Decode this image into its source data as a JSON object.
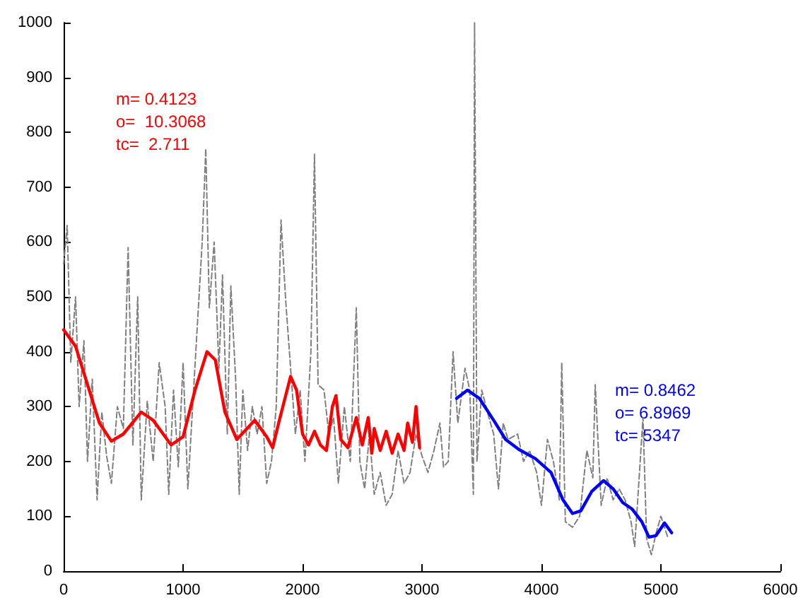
{
  "chart_data": {
    "type": "line",
    "xlim": [
      0,
      6000
    ],
    "ylim": [
      0,
      1000
    ],
    "xticks": [
      0,
      1000,
      2000,
      3000,
      4000,
      5000,
      6000
    ],
    "yticks": [
      0,
      100,
      200,
      300,
      400,
      500,
      600,
      700,
      800,
      900,
      1000
    ],
    "marker": "none",
    "annotations": [
      "m= 0.4123\no=  10.3068\ntc=  2.711",
      "m= 0.8462\no= 6.8969\ntc= 5347"
    ],
    "series": [
      {
        "color": "#808080",
        "line_style": "dashed",
        "x": [
          0,
          30,
          60,
          100,
          130,
          170,
          200,
          240,
          280,
          320,
          360,
          400,
          450,
          500,
          540,
          580,
          620,
          650,
          700,
          750,
          800,
          850,
          880,
          920,
          960,
          1000,
          1040,
          1080,
          1120,
          1160,
          1190,
          1220,
          1260,
          1300,
          1330,
          1370,
          1400,
          1440,
          1470,
          1500,
          1540,
          1580,
          1620,
          1660,
          1700,
          1740,
          1780,
          1820,
          1860,
          1900,
          1940,
          1980,
          2020,
          2070,
          2100,
          2130,
          2180,
          2220,
          2260,
          2300,
          2350,
          2400,
          2450,
          2480,
          2520,
          2560,
          2600,
          2650,
          2700,
          2750,
          2800,
          2850,
          2900,
          2950,
          3000,
          3050,
          3100,
          3150,
          3180,
          3220,
          3260,
          3300,
          3330,
          3360,
          3400,
          3430,
          3440,
          3460,
          3500,
          3560,
          3600,
          3640,
          3680,
          3720,
          3800,
          3850,
          3900,
          3960,
          4000,
          4050,
          4100,
          4150,
          4170,
          4200,
          4260,
          4320,
          4380,
          4430,
          4450,
          4500,
          4550,
          4600,
          4650,
          4700,
          4750,
          4780,
          4800,
          4850,
          4880,
          4920,
          4960,
          5000,
          5060
        ],
        "values": [
          560,
          630,
          380,
          500,
          300,
          420,
          200,
          350,
          130,
          290,
          210,
          160,
          300,
          260,
          590,
          230,
          500,
          130,
          310,
          200,
          380,
          300,
          140,
          330,
          190,
          380,
          150,
          300,
          450,
          600,
          770,
          480,
          600,
          370,
          540,
          250,
          520,
          350,
          140,
          330,
          220,
          300,
          250,
          300,
          160,
          200,
          300,
          640,
          490,
          370,
          250,
          330,
          200,
          400,
          760,
          340,
          330,
          250,
          280,
          160,
          300,
          200,
          480,
          200,
          150,
          250,
          140,
          180,
          120,
          140,
          220,
          160,
          180,
          250,
          210,
          180,
          220,
          270,
          190,
          200,
          400,
          270,
          320,
          370,
          330,
          140,
          1000,
          200,
          330,
          280,
          250,
          150,
          270,
          240,
          250,
          200,
          220,
          180,
          120,
          240,
          200,
          130,
          380,
          90,
          80,
          100,
          220,
          170,
          340,
          120,
          170,
          130,
          150,
          130,
          90,
          45,
          110,
          280,
          60,
          30,
          70,
          100,
          60
        ]
      },
      {
        "color": "#ff0000",
        "line_style": "solid",
        "x": [
          0,
          100,
          200,
          300,
          400,
          500,
          650,
          750,
          900,
          1000,
          1100,
          1200,
          1270,
          1350,
          1450,
          1600,
          1700,
          1750,
          1800,
          1900,
          1950,
          2000,
          2050,
          2100,
          2150,
          2200,
          2250,
          2280,
          2320,
          2380,
          2450,
          2480,
          2500,
          2550,
          2580,
          2600,
          2650,
          2700,
          2750,
          2800,
          2850,
          2880,
          2920,
          2950,
          2980
        ],
        "values": [
          440,
          410,
          340,
          270,
          237,
          250,
          290,
          275,
          230,
          245,
          330,
          400,
          385,
          290,
          240,
          275,
          245,
          225,
          270,
          355,
          330,
          250,
          230,
          255,
          230,
          220,
          300,
          320,
          240,
          225,
          280,
          250,
          230,
          280,
          215,
          260,
          220,
          255,
          215,
          250,
          220,
          270,
          235,
          300,
          225
        ]
      },
      {
        "color": "#0000ff",
        "line_style": "solid",
        "x": [
          3290,
          3380,
          3480,
          3600,
          3700,
          3810,
          3950,
          4080,
          4180,
          4260,
          4330,
          4420,
          4520,
          4600,
          4680,
          4760,
          4840,
          4900,
          4960,
          5030,
          5090
        ],
        "values": [
          315,
          330,
          315,
          275,
          240,
          222,
          205,
          180,
          130,
          105,
          110,
          145,
          165,
          150,
          125,
          113,
          90,
          62,
          65,
          88,
          70
        ]
      }
    ]
  }
}
